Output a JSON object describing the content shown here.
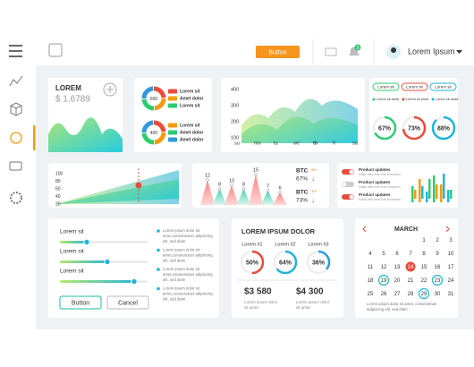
{
  "topbar": {
    "button": "Button",
    "badge": "3",
    "user": "Lorem Ipsum"
  },
  "balance": {
    "title": "LOREM",
    "amount": "$ 1.6789"
  },
  "donuts": [
    {
      "center": "600",
      "items": [
        "Lorem sit",
        "Amet dolor",
        "Lorem sit"
      ]
    },
    {
      "center": "400",
      "items": [
        "Lorem sit",
        "Amet dolor",
        "Amet dolor"
      ]
    }
  ],
  "area": {
    "yticks": [
      "400",
      "300",
      "200",
      "100"
    ],
    "xticks": [
      "su",
      "mo",
      "tu",
      "we",
      "th",
      "fr",
      "sa"
    ]
  },
  "rings": {
    "tabs": [
      "Lorem sit",
      "Lorem sit",
      "Lorem sit"
    ],
    "items": [
      {
        "value": "67%",
        "caption": "Lorem sit amet"
      },
      {
        "value": "73%",
        "caption": "Lorem sit amet"
      },
      {
        "value": "88%",
        "caption": "Lorem sit amet"
      }
    ]
  },
  "growth": {
    "yticks": [
      "100",
      "80",
      "60",
      "40",
      "20"
    ]
  },
  "peaks": {
    "labels": [
      "12",
      "8",
      "10",
      "8",
      "15",
      "7",
      "6"
    ],
    "btc": [
      {
        "name": "BTC",
        "change": "-5%",
        "value": "67%",
        "arrow": "↓"
      },
      {
        "name": "BTC",
        "change": "-1%",
        "value": "73%",
        "arrow": "↓"
      }
    ]
  },
  "updates": [
    {
      "title": "Product updates",
      "text": "Stain lifts free the freedom"
    },
    {
      "title": "Product updates",
      "text": "Stain lifts free the freedom"
    },
    {
      "title": "Product updates",
      "text": "Stain lifts free the freedom"
    }
  ],
  "sliders": {
    "labels": [
      "Lorem sit",
      "Lorem sit",
      "Lorem sit"
    ],
    "ok": "Button",
    "cancel": "Cancel",
    "notes": [
      [
        "Lorem ipsum dolor sit",
        "amet,consectetuer adipiscing",
        "elit, sed diam"
      ],
      [
        "Lorem ipsum dolor sit",
        "amet,consectetuer adipiscing",
        "elit, sed diam"
      ],
      [
        "Lorem ipsum dolor sit",
        "amet,consectetuer adipiscing",
        "elit, sed diam"
      ],
      [
        "Lorem ipsum dolor sit",
        "amet,consectetuer adipiscing",
        "elit, sed diam"
      ]
    ]
  },
  "stats": {
    "title": "LOREM IPSUM DOLOR",
    "items": [
      {
        "label": "Lorem #1",
        "value": "50%"
      },
      {
        "label": "Lorem #2",
        "value": "64%"
      },
      {
        "label": "Lorem #3",
        "value": "36%"
      }
    ],
    "amounts": [
      {
        "value": "$3 580",
        "caption": [
          "Lorem ipsum dolor",
          "sit amet"
        ]
      },
      {
        "value": "$4 300",
        "caption": [
          "Lorem ipsum dolor",
          "sit amet"
        ]
      }
    ]
  },
  "calendar": {
    "month": "MARCH",
    "days": [
      1,
      2,
      3,
      4,
      5,
      6,
      7,
      8,
      9,
      10,
      11,
      12,
      13,
      14,
      15,
      16,
      17,
      18,
      19,
      20,
      21,
      22,
      23,
      24,
      25,
      26,
      27,
      28,
      29,
      30,
      31
    ],
    "caption": [
      "Lorem ipsum dolor sit amet, consectetuer",
      "adipiscing elit, sed diam"
    ]
  }
}
